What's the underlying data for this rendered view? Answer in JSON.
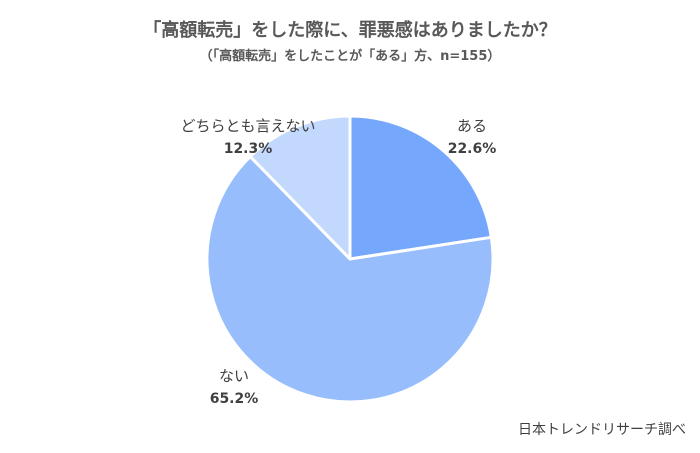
{
  "chart_data": {
    "type": "pie",
    "title": "「高額転売」をした際に、罪悪感はありましたか？",
    "subtitle": "（「高額転売」をしたことが「ある」方、n=155）",
    "categories": [
      "ある",
      "ない",
      "どちらとも言えない"
    ],
    "values": [
      22.6,
      65.2,
      12.3
    ],
    "value_labels": [
      "22.6%",
      "65.2%",
      "12.3%"
    ],
    "colors": [
      "#75a8fd",
      "#98bdfd",
      "#c3d8fd"
    ],
    "start_angle": "12 o'clock",
    "direction": "clockwise",
    "legend": "none (labels outside slices)"
  },
  "source": "日本トレンドリサーチ調べ"
}
